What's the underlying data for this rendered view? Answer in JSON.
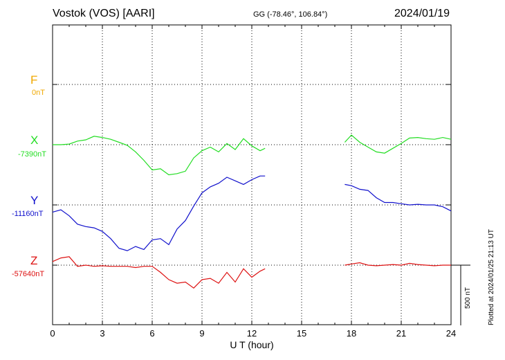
{
  "header": {
    "station": "Vostok (VOS)  [AARI]",
    "coords": "GG (-78.46°, 106.84°)",
    "date": "2024/01/19"
  },
  "footer": {
    "plotted": "Plotted at 2024/01/25 21:13 UT"
  },
  "colors": {
    "F": "#f0a800",
    "X": "#22dd22",
    "Y": "#1010cc",
    "Z": "#dd1010"
  },
  "chart_data": {
    "type": "line",
    "xlabel": "U T (hour)",
    "xlim": [
      0,
      24
    ],
    "x_ticks": [
      "0",
      "3",
      "6",
      "9",
      "12",
      "15",
      "18",
      "21",
      "24"
    ],
    "scale_bar": "500 nT",
    "series": [
      {
        "name": "F",
        "baseline_label": "0nT",
        "baseline": 0,
        "points": []
      },
      {
        "name": "X",
        "baseline_label": "-7390nT",
        "baseline": -7390,
        "points": [
          [
            0,
            -7390
          ],
          [
            0.5,
            -7390
          ],
          [
            1,
            -7385
          ],
          [
            1.5,
            -7360
          ],
          [
            2,
            -7350
          ],
          [
            2.5,
            -7320
          ],
          [
            3,
            -7330
          ],
          [
            3.5,
            -7345
          ],
          [
            4,
            -7370
          ],
          [
            4.5,
            -7395
          ],
          [
            5,
            -7450
          ],
          [
            5.5,
            -7520
          ],
          [
            6,
            -7600
          ],
          [
            6.5,
            -7590
          ],
          [
            7,
            -7640
          ],
          [
            7.5,
            -7630
          ],
          [
            8,
            -7610
          ],
          [
            8.5,
            -7500
          ],
          [
            9,
            -7440
          ],
          [
            9.5,
            -7410
          ],
          [
            10,
            -7450
          ],
          [
            10.5,
            -7380
          ],
          [
            11,
            -7430
          ],
          [
            11.5,
            -7340
          ],
          [
            12,
            -7400
          ],
          [
            12.5,
            -7440
          ],
          [
            12.8,
            -7420
          ],
          [
            17.6,
            -7370
          ],
          [
            18,
            -7310
          ],
          [
            18.5,
            -7370
          ],
          [
            19,
            -7410
          ],
          [
            19.5,
            -7450
          ],
          [
            20,
            -7460
          ],
          [
            20.5,
            -7420
          ],
          [
            21,
            -7380
          ],
          [
            21.5,
            -7335
          ],
          [
            22,
            -7330
          ],
          [
            22.5,
            -7340
          ],
          [
            23,
            -7345
          ],
          [
            23.5,
            -7330
          ],
          [
            24,
            -7345
          ]
        ]
      },
      {
        "name": "Y",
        "baseline_label": "-11160nT",
        "baseline": -11160,
        "points": [
          [
            0,
            -11220
          ],
          [
            0.5,
            -11200
          ],
          [
            1,
            -11250
          ],
          [
            1.5,
            -11320
          ],
          [
            2,
            -11340
          ],
          [
            2.5,
            -11350
          ],
          [
            3,
            -11380
          ],
          [
            3.5,
            -11440
          ],
          [
            4,
            -11520
          ],
          [
            4.5,
            -11540
          ],
          [
            5,
            -11505
          ],
          [
            5.5,
            -11530
          ],
          [
            6,
            -11450
          ],
          [
            6.5,
            -11440
          ],
          [
            7,
            -11490
          ],
          [
            7.5,
            -11360
          ],
          [
            8,
            -11290
          ],
          [
            8.5,
            -11170
          ],
          [
            9,
            -11060
          ],
          [
            9.5,
            -11010
          ],
          [
            10,
            -10980
          ],
          [
            10.5,
            -10930
          ],
          [
            11,
            -10960
          ],
          [
            11.5,
            -10990
          ],
          [
            12,
            -10950
          ],
          [
            12.5,
            -10920
          ],
          [
            12.8,
            -10920
          ],
          [
            17.6,
            -10990
          ],
          [
            18,
            -11000
          ],
          [
            18.5,
            -11030
          ],
          [
            19,
            -11040
          ],
          [
            19.5,
            -11100
          ],
          [
            20,
            -11140
          ],
          [
            20.5,
            -11140
          ],
          [
            21,
            -11150
          ],
          [
            21.5,
            -11160
          ],
          [
            22,
            -11155
          ],
          [
            22.5,
            -11160
          ],
          [
            23,
            -11160
          ],
          [
            23.5,
            -11175
          ],
          [
            24,
            -11210
          ]
        ]
      },
      {
        "name": "Z",
        "baseline_label": "-57640nT",
        "baseline": -57640,
        "points": [
          [
            0,
            -57610
          ],
          [
            0.5,
            -57580
          ],
          [
            1,
            -57570
          ],
          [
            1.5,
            -57650
          ],
          [
            2,
            -57640
          ],
          [
            2.5,
            -57650
          ],
          [
            3,
            -57645
          ],
          [
            3.5,
            -57650
          ],
          [
            4,
            -57650
          ],
          [
            4.5,
            -57650
          ],
          [
            5,
            -57660
          ],
          [
            5.5,
            -57650
          ],
          [
            6,
            -57650
          ],
          [
            6.5,
            -57700
          ],
          [
            7,
            -57760
          ],
          [
            7.5,
            -57790
          ],
          [
            8,
            -57780
          ],
          [
            8.5,
            -57830
          ],
          [
            9,
            -57760
          ],
          [
            9.5,
            -57750
          ],
          [
            10,
            -57790
          ],
          [
            10.5,
            -57700
          ],
          [
            11,
            -57780
          ],
          [
            11.5,
            -57670
          ],
          [
            12,
            -57740
          ],
          [
            12.5,
            -57690
          ],
          [
            12.8,
            -57670
          ],
          [
            17.6,
            -57640
          ],
          [
            18,
            -57630
          ],
          [
            18.5,
            -57620
          ],
          [
            19,
            -57640
          ],
          [
            19.5,
            -57645
          ],
          [
            20,
            -57640
          ],
          [
            20.5,
            -57635
          ],
          [
            21,
            -57640
          ],
          [
            21.5,
            -57625
          ],
          [
            22,
            -57635
          ],
          [
            22.5,
            -57640
          ],
          [
            23,
            -57645
          ],
          [
            23.5,
            -57640
          ],
          [
            24,
            -57640
          ]
        ]
      }
    ]
  }
}
